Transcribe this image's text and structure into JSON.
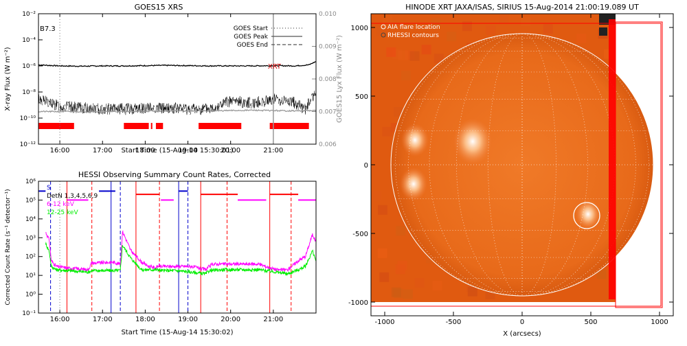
{
  "colors": {
    "goes_flux": "#000000",
    "lyx": "#999999",
    "rhessi_bar": "#ff0000",
    "xrt_marker": "#cc0000",
    "ch_blue": "#0000cc",
    "ch_red": "#ff0000",
    "ch_magenta": "#ff00ff",
    "ch_green": "#00ee00",
    "map_bg": "#e05a10"
  },
  "chart_data": [
    {
      "type": "line",
      "title": "GOES15 XRS",
      "xlabel": "Start Time (15-Aug-14 15:30:01)",
      "ylabel": "X-ray Flux (W m⁻²)",
      "y2label": "GOES15 Lyx Flux (W m⁻²)",
      "xlim": [
        "15:30",
        "22:00"
      ],
      "x_ticks": [
        "16:00",
        "17:00",
        "18:00",
        "19:00",
        "20:00",
        "21:00"
      ],
      "y_scale": "log",
      "ylim": [
        1e-12,
        0.01
      ],
      "y_ticks": [
        "10⁻¹²",
        "10⁻¹⁰",
        "10⁻⁸",
        "10⁻⁶",
        "10⁻⁴",
        "10⁻²"
      ],
      "y2lim": [
        0.006,
        0.01
      ],
      "y2_ticks": [
        "0.006",
        "0.007",
        "0.008",
        "0.009",
        "0.010"
      ],
      "class_label": "B7.3",
      "marker_label": "XRT",
      "legend": [
        {
          "label": "GOES Start",
          "style": "dotted"
        },
        {
          "label": "GOES Peak",
          "style": "solid"
        },
        {
          "label": "GOES End",
          "style": "dashed"
        }
      ],
      "goes_start": "16:00",
      "xrt_time": "21:00",
      "series": [
        {
          "style": "solid",
          "x": [
            "15:30",
            "16:00",
            "16:30",
            "17:00",
            "17:30",
            "18:00",
            "18:30",
            "19:00",
            "19:30",
            "20:00",
            "20:30",
            "21:00",
            "21:30",
            "21:50",
            "22:00"
          ],
          "values": [
            1.2e-06,
            1e-06,
            9.5e-07,
            1e-06,
            1e-06,
            1.05e-06,
            1.1e-06,
            1.05e-06,
            1e-06,
            1e-06,
            1e-06,
            1.05e-06,
            1e-06,
            1.2e-06,
            2.2e-06
          ]
        },
        {
          "style": "noisy",
          "x": [
            "15:30",
            "15:45",
            "16:00",
            "16:30",
            "17:00",
            "17:30",
            "18:00",
            "18:30",
            "19:00",
            "19:30",
            "20:00",
            "20:30",
            "20:50",
            "21:00",
            "21:30",
            "21:45",
            "22:00"
          ],
          "values": [
            3e-09,
            1.5e-09,
            8e-10,
            6e-10,
            5e-10,
            5e-10,
            6e-10,
            6e-10,
            5e-10,
            5e-10,
            2e-09,
            1.5e-09,
            2e-09,
            3e-09,
            1.5e-09,
            5e-10,
            1e-08
          ]
        },
        {
          "style": "gray",
          "x": [
            "15:30",
            "16:30",
            "17:30",
            "18:30",
            "19:30",
            "20:30",
            "21:30",
            "22:00"
          ],
          "values": [
            0.007,
            0.007,
            0.007,
            0.00702,
            0.00702,
            0.00704,
            0.00702,
            0.00703
          ]
        }
      ],
      "rhessi_intervals": [
        [
          "15:30",
          "16:20"
        ],
        [
          "17:30",
          "18:05"
        ],
        [
          "18:08",
          "18:10"
        ],
        [
          "18:15",
          "18:25"
        ],
        [
          "19:15",
          "20:15"
        ],
        [
          "20:55",
          "21:50"
        ]
      ]
    },
    {
      "type": "line",
      "title": "HESSI Observing Summary Count Rates, Corrected",
      "xlabel": "Start Time (15-Aug-14 15:30:02)",
      "ylabel": "Corrected Count Rate (s⁻¹ detector⁻¹)",
      "xlim": [
        "15:30",
        "22:00"
      ],
      "x_ticks": [
        "16:00",
        "17:00",
        "18:00",
        "19:00",
        "20:00",
        "21:00"
      ],
      "y_scale": "log",
      "ylim": [
        0.1,
        1000000.0
      ],
      "y_ticks": [
        "10⁻¹",
        "10⁰",
        "10¹",
        "10²",
        "10³",
        "10⁴",
        "10⁵",
        "10⁶"
      ],
      "legend": [
        {
          "label": "S",
          "color": "#0000cc"
        },
        {
          "label": "DetN 1,3,4,5,6,9",
          "color": "#000000"
        },
        {
          "label": "6-12 keV",
          "color": "#ff00ff"
        },
        {
          "label": "12-25 keV",
          "color": "#00ee00"
        }
      ],
      "series": [
        {
          "name": "6-12 keV",
          "x": [
            "15:40",
            "15:45",
            "15:48",
            "15:55",
            "16:10",
            "16:40",
            "16:45",
            "16:47",
            "17:15",
            "17:25",
            "17:28",
            "17:30",
            "17:40",
            "17:55",
            "18:05",
            "18:15",
            "18:20",
            "18:22",
            "18:45",
            "19:05",
            "19:25",
            "19:30",
            "19:35",
            "20:40",
            "20:55",
            "21:05",
            "21:20",
            "21:35",
            "21:45",
            "21:55",
            "22:00"
          ],
          "values": [
            2000,
            800,
            60,
            30,
            25,
            20,
            50,
            45,
            50,
            40,
            2000,
            1500,
            200,
            50,
            30,
            25,
            35,
            30,
            30,
            30,
            20,
            30,
            40,
            40,
            25,
            20,
            20,
            60,
            100,
            1500,
            600
          ]
        },
        {
          "name": "12-25 keV",
          "x": [
            "15:40",
            "15:45",
            "15:48",
            "15:55",
            "16:10",
            "16:40",
            "16:45",
            "17:25",
            "17:28",
            "17:40",
            "17:55",
            "18:20",
            "18:22",
            "18:45",
            "19:25",
            "19:30",
            "19:50",
            "20:40",
            "21:05",
            "21:20",
            "21:35",
            "21:45",
            "21:55",
            "22:00"
          ],
          "values": [
            500,
            200,
            30,
            20,
            18,
            15,
            18,
            18,
            400,
            80,
            20,
            20,
            18,
            18,
            12,
            18,
            20,
            20,
            15,
            12,
            20,
            30,
            200,
            60
          ]
        }
      ],
      "decimator_levels": [
        {
          "name": "blue",
          "x": [
            "15:30",
            "15:40"
          ],
          "value": 300000.0
        },
        {
          "name": "magenta",
          "x": [
            "16:10",
            "16:40"
          ],
          "value": 100000.0
        },
        {
          "name": "blue",
          "x": [
            "16:55",
            "17:18"
          ],
          "value": 300000.0
        },
        {
          "name": "red",
          "x": [
            "17:47",
            "18:20"
          ],
          "value": 200000.0
        },
        {
          "name": "magenta",
          "x": [
            "18:22",
            "18:40"
          ],
          "value": 100000.0
        },
        {
          "name": "blue",
          "x": [
            "18:47",
            "19:00"
          ],
          "value": 300000.0
        },
        {
          "name": "red",
          "x": [
            "19:18",
            "20:10"
          ],
          "value": 200000.0
        },
        {
          "name": "magenta",
          "x": [
            "20:10",
            "20:50"
          ],
          "value": 100000.0
        },
        {
          "name": "red",
          "x": [
            "20:55",
            "21:35"
          ],
          "value": 200000.0
        },
        {
          "name": "magenta",
          "x": [
            "21:35",
            "22:00"
          ],
          "value": 100000.0
        }
      ],
      "event_lines": [
        {
          "x": "15:47",
          "color": "blue",
          "style": "dashed"
        },
        {
          "x": "16:00",
          "color": "gray",
          "style": "dotted"
        },
        {
          "x": "16:10",
          "color": "red",
          "style": "solid"
        },
        {
          "x": "16:45",
          "color": "red",
          "style": "dashed"
        },
        {
          "x": "17:12",
          "color": "blue",
          "style": "solid"
        },
        {
          "x": "17:25",
          "color": "blue",
          "style": "dashed"
        },
        {
          "x": "17:47",
          "color": "red",
          "style": "solid"
        },
        {
          "x": "18:20",
          "color": "red",
          "style": "dashed"
        },
        {
          "x": "18:47",
          "color": "blue",
          "style": "solid"
        },
        {
          "x": "19:00",
          "color": "blue",
          "style": "dashed"
        },
        {
          "x": "19:18",
          "color": "red",
          "style": "solid"
        },
        {
          "x": "19:55",
          "color": "red",
          "style": "dashed"
        },
        {
          "x": "20:55",
          "color": "red",
          "style": "solid"
        },
        {
          "x": "21:25",
          "color": "red",
          "style": "dashed"
        }
      ]
    },
    {
      "type": "heatmap",
      "title": "HINODE XRT JAXA/ISAS, SIRIUS 15-Aug-2014 21:00:19.089 UT",
      "xlabel": "X (arcsecs)",
      "xlim": [
        -1100,
        1100
      ],
      "ylim": [
        -1100,
        1100
      ],
      "x_ticks": [
        "-1000",
        "-500",
        "0",
        "500",
        "1000"
      ],
      "y_ticks": [
        "-1000",
        "-500",
        "0",
        "500",
        "1000"
      ],
      "legend": [
        "AIA flare location",
        "RHESSI contours"
      ],
      "solar_radius": 955,
      "flare_location": [
        470,
        -370
      ],
      "bright_regions": [
        [
          -360,
          170
        ],
        [
          -780,
          180
        ],
        [
          480,
          -360
        ],
        [
          -790,
          -140
        ]
      ]
    }
  ]
}
